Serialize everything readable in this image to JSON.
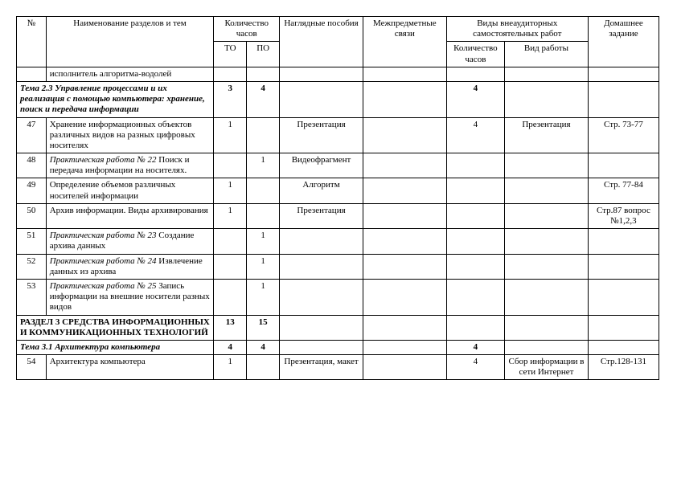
{
  "header": {
    "num": "№",
    "name": "Наименование разделов и тем",
    "hours": "Количество часов",
    "to": "ТО",
    "po": "ПО",
    "aids": "Наглядные пособия",
    "inter": "Межпредметные связи",
    "self": "Виды внеаудиторных самостоятельных работ",
    "self_hours": "Количество часов",
    "self_work": "Вид работы",
    "home": "Домашнее задание"
  },
  "rows": {
    "r0": {
      "name": "исполнитель алгоритма-водолей"
    },
    "r1": {
      "name": "Тема 2.3 Управление процессами и их реализация с помощью компьютера: хранение, поиск и передача информации",
      "to": "3",
      "po": "4",
      "sh": "4"
    },
    "r2": {
      "num": "47",
      "name": "Хранение информационных объектов различных видов на разных цифровых носителях",
      "to": "1",
      "aid": "Презентация",
      "sh": "4",
      "sw": "Презентация",
      "home": "Стр. 73-77"
    },
    "r3": {
      "num": "48",
      "name_i": "Практическая работа № 22",
      "name_r": " Поиск и передача информации на носителях.",
      "po": "1",
      "aid": "Видеофрагмент"
    },
    "r4": {
      "num": "49",
      "name": "Определение объемов различных носителей информации",
      "to": "1",
      "aid": "Алгоритм",
      "home": "Стр. 77-84"
    },
    "r5": {
      "num": "50",
      "name": "Архив информации. Виды архивирования",
      "to": "1",
      "aid": "Презентация",
      "home": "Стр.87 вопрос №1,2,3"
    },
    "r6": {
      "num": "51",
      "name_i": "Практическая работа № 23",
      "name_r": " Создание архива данных",
      "po": "1"
    },
    "r7": {
      "num": "52",
      "name_i": "Практическая работа № 24",
      "name_r": " Извлечение данных из архива",
      "po": "1"
    },
    "r8": {
      "num": "53",
      "name_i": "Практическая работа № 25",
      "name_r": " Запись информации на внешние носители разных видов",
      "po": "1"
    },
    "r9": {
      "name": "РАЗДЕЛ 3 СРЕДСТВА ИНФОРМАЦИОННЫХ И КОММУНИКАЦИОННЫХ ТЕХНОЛОГИЙ",
      "to": "13",
      "po": "15"
    },
    "r10": {
      "name": "Тема 3.1 Архитектура компьютера",
      "to": "4",
      "po": "4",
      "sh": "4"
    },
    "r11": {
      "num": "54",
      "name": "Архитектура компьютера",
      "to": "1",
      "aid": "Презентация, макет",
      "sh": "4",
      "sw": "Сбор информации в сети Интернет",
      "home": "Стр.128-131"
    }
  }
}
